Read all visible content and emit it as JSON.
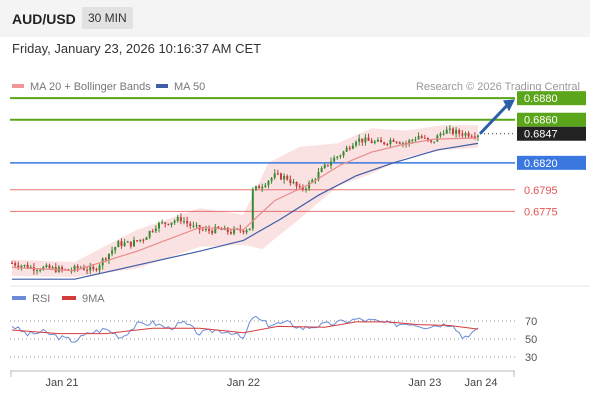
{
  "header": {
    "symbol": "AUD/USD",
    "timeframe": "30 MIN"
  },
  "date_line": "Friday, January 23, 2026 10:16:37 AM CET",
  "credit": "Research © 2026 Trading Central",
  "colors": {
    "resistance": "#5aa51a",
    "pivot": "#3a78e0",
    "support": "#e35353",
    "last": "#222222",
    "up_candle": "#3a8a35",
    "down_candle": "#c23c3c",
    "bollinger_fill": "#f9d8d8",
    "ma20": "#e88a8a",
    "ma50": "#3f5ea8",
    "rsi": "#6b8ad8",
    "rsi_ma": "#d63b3b",
    "arrow": "#2a5fa8"
  },
  "chart_data": [
    {
      "type": "candlestick",
      "legend": [
        {
          "label": "MA 20 + Bollinger Bands",
          "color": "#f29595"
        },
        {
          "label": "MA 50",
          "color": "#3f5ea8"
        }
      ],
      "ylim": [
        0.6715,
        0.6895
      ],
      "x_ticks": [
        "Jan 21",
        "Jan 22",
        "Jan 23",
        "Jan 24"
      ],
      "levels": [
        {
          "value": 0.688,
          "label": "0.6880",
          "kind": "resistance"
        },
        {
          "value": 0.686,
          "label": "0.6860",
          "kind": "resistance"
        },
        {
          "value": 0.6847,
          "label": "0.6847",
          "kind": "last"
        },
        {
          "value": 0.682,
          "label": "0.6820",
          "kind": "pivot"
        },
        {
          "value": 0.6795,
          "label": "0.6795",
          "kind": "support"
        },
        {
          "value": 0.6775,
          "label": "0.6775",
          "kind": "support"
        }
      ],
      "trend_arrow": {
        "from": 0.6847,
        "to": 0.6877
      },
      "close_path": [
        [
          0,
          0.6727
        ],
        [
          6,
          0.6723
        ],
        [
          12,
          0.6722
        ],
        [
          18,
          0.672
        ],
        [
          22,
          0.6723
        ],
        [
          26,
          0.672
        ],
        [
          30,
          0.6733
        ],
        [
          34,
          0.6745
        ],
        [
          38,
          0.6745
        ],
        [
          42,
          0.675
        ],
        [
          46,
          0.6762
        ],
        [
          50,
          0.6765
        ],
        [
          54,
          0.6768
        ],
        [
          58,
          0.676
        ],
        [
          62,
          0.6757
        ],
        [
          66,
          0.6758
        ],
        [
          70,
          0.6756
        ],
        [
          74,
          0.6758
        ],
        [
          76,
          0.676
        ],
        [
          77,
          0.6794
        ],
        [
          80,
          0.68
        ],
        [
          84,
          0.6808
        ],
        [
          88,
          0.6806
        ],
        [
          92,
          0.6795
        ],
        [
          95,
          0.68
        ],
        [
          98,
          0.681
        ],
        [
          102,
          0.6822
        ],
        [
          106,
          0.683
        ],
        [
          110,
          0.6842
        ],
        [
          114,
          0.684
        ],
        [
          118,
          0.6838
        ],
        [
          122,
          0.6842
        ],
        [
          126,
          0.6838
        ],
        [
          130,
          0.6845
        ],
        [
          134,
          0.6838
        ],
        [
          138,
          0.685
        ],
        [
          142,
          0.6848
        ],
        [
          145,
          0.6847
        ],
        [
          149,
          0.6847
        ]
      ],
      "ma20": [
        [
          0,
          0.6723
        ],
        [
          20,
          0.672
        ],
        [
          40,
          0.6738
        ],
        [
          60,
          0.676
        ],
        [
          74,
          0.6758
        ],
        [
          84,
          0.6785
        ],
        [
          95,
          0.68
        ],
        [
          105,
          0.6818
        ],
        [
          115,
          0.683
        ],
        [
          125,
          0.6837
        ],
        [
          135,
          0.6842
        ],
        [
          149,
          0.6843
        ]
      ],
      "bb_upper": [
        [
          0,
          0.673
        ],
        [
          20,
          0.6728
        ],
        [
          40,
          0.6758
        ],
        [
          60,
          0.6778
        ],
        [
          74,
          0.6772
        ],
        [
          82,
          0.682
        ],
        [
          92,
          0.6835
        ],
        [
          104,
          0.6838
        ],
        [
          115,
          0.6852
        ],
        [
          126,
          0.685
        ],
        [
          138,
          0.6855
        ],
        [
          149,
          0.6855
        ]
      ],
      "bb_lower": [
        [
          0,
          0.6715
        ],
        [
          20,
          0.6714
        ],
        [
          40,
          0.6722
        ],
        [
          60,
          0.6742
        ],
        [
          74,
          0.6744
        ],
        [
          80,
          0.674
        ],
        [
          92,
          0.6768
        ],
        [
          104,
          0.6798
        ],
        [
          115,
          0.681
        ],
        [
          126,
          0.6825
        ],
        [
          138,
          0.6832
        ],
        [
          149,
          0.6834
        ]
      ],
      "ma50": [
        [
          0,
          0.6712
        ],
        [
          20,
          0.6712
        ],
        [
          40,
          0.6725
        ],
        [
          60,
          0.6738
        ],
        [
          74,
          0.6748
        ],
        [
          86,
          0.6768
        ],
        [
          98,
          0.679
        ],
        [
          110,
          0.6808
        ],
        [
          122,
          0.682
        ],
        [
          136,
          0.6832
        ],
        [
          149,
          0.6838
        ]
      ]
    },
    {
      "type": "line",
      "legend": [
        {
          "label": "RSI",
          "color": "#6b8ad8"
        },
        {
          "label": "9MA",
          "color": "#d63b3b"
        }
      ],
      "ylim": [
        20,
        80
      ],
      "y_ticks": [
        70,
        50,
        30
      ],
      "rsi": [
        [
          0,
          65
        ],
        [
          5,
          55
        ],
        [
          10,
          58
        ],
        [
          15,
          52
        ],
        [
          20,
          48
        ],
        [
          25,
          57
        ],
        [
          30,
          61
        ],
        [
          35,
          52
        ],
        [
          40,
          66
        ],
        [
          45,
          68
        ],
        [
          50,
          62
        ],
        [
          55,
          68
        ],
        [
          60,
          56
        ],
        [
          65,
          60
        ],
        [
          70,
          58
        ],
        [
          74,
          50
        ],
        [
          77,
          75
        ],
        [
          82,
          66
        ],
        [
          88,
          68
        ],
        [
          93,
          62
        ],
        [
          98,
          65
        ],
        [
          104,
          68
        ],
        [
          110,
          72
        ],
        [
          116,
          70
        ],
        [
          122,
          66
        ],
        [
          127,
          68
        ],
        [
          132,
          64
        ],
        [
          137,
          66
        ],
        [
          141,
          67
        ],
        [
          144,
          52
        ],
        [
          149,
          60
        ]
      ],
      "rsi_ma": [
        [
          0,
          60
        ],
        [
          15,
          56
        ],
        [
          30,
          56
        ],
        [
          45,
          62
        ],
        [
          60,
          62
        ],
        [
          74,
          57
        ],
        [
          85,
          64
        ],
        [
          100,
          63
        ],
        [
          110,
          69
        ],
        [
          120,
          69
        ],
        [
          130,
          66
        ],
        [
          140,
          65
        ],
        [
          149,
          61
        ]
      ]
    }
  ]
}
